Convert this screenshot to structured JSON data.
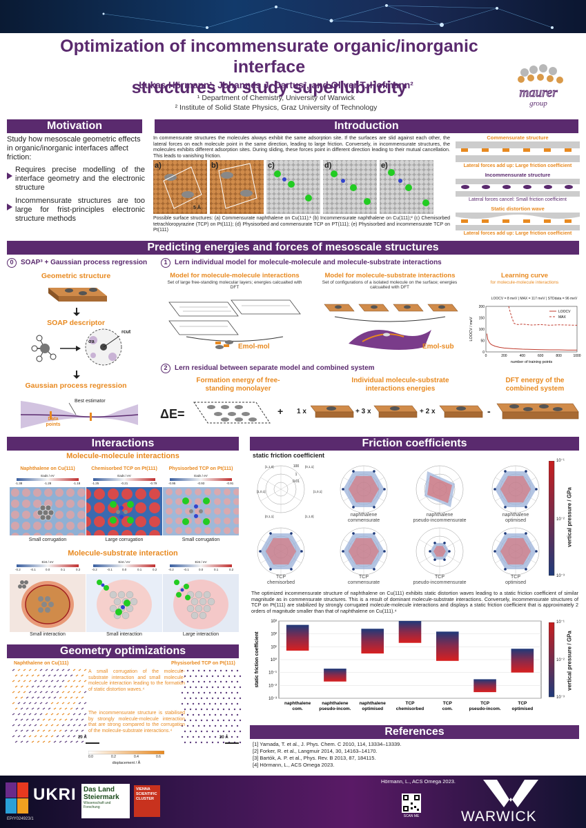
{
  "header": {
    "title_line1": "Optimization of incommensurate organic/inorganic interface",
    "title_line2": "structures to study superlubricity",
    "authors": "Lukas Hörmann¹, Johannes J. Cartus², and Oliver T. Hofmann²",
    "affiliation1": "¹ Department of Chemistry, University of Warwick",
    "affiliation2": "² Institute of Solid State Physics, Graz University of Technology",
    "logo_text": "maurer group"
  },
  "motivation": {
    "heading": "Motivation",
    "intro": "Study how mesoscale geometric effects in organic/inorganic interfaces affect friction:",
    "bullet1": "Requires precise modelling of the interface geometry and the electronic structure",
    "bullet2": "Incommensurate structures are too large for frist-principles electronic structure methods"
  },
  "introduction": {
    "heading": "Introduction",
    "text": "In commensurate structures the molecules always exhibit the same adsorption site. If the surfaces are slid against each other, the lateral forces on each molecule point in the same direction, leading to large friction. Conversely, in incommensurate structures, the molecules exhibits different adsorption sites. During sliding, these forces point in different direction leading to their mutual cancellation. This leads to vanishing friction.",
    "panel_labels": [
      "a)",
      "b)",
      "c)",
      "d)",
      "e)"
    ],
    "scale": "5 Å",
    "caption": "Possible surface structures: (a) Commensurate naphthalene on Cu(111);¹ (b) Incommensurate naphthalene on Cu(111);² (c) Chemisorbed tetrachloropyrazine (TCP) on Pt(111); (d) Physisorbed and commensurate TCP on PT(111); (e) Physisorbed and incommensurate TCP on Pt(111)",
    "side_title1": "Commensurate structure",
    "side_cap1": "Lateral forces add up: Large friction coefficient",
    "side_title2": "Incommensurate structure",
    "side_cap2": "Lateral forces cancel: Small friction coefficient",
    "side_title3": "Static distortion wave",
    "side_cap3": "Lateral forces add up: Large friction coefficient"
  },
  "predicting": {
    "heading": "Predicting energies and forces of mesoscale structures",
    "step0_num": "0",
    "step0": "SOAP³ + Gaussian process regression",
    "geo": "Geometric structure",
    "soap": "SOAP descriptor",
    "sigma": "σa",
    "rcut": "rcut",
    "gpr": "Gaussian process regression",
    "best": "Best estimator",
    "datapoints_l1": "Data",
    "datapoints_l2": "points",
    "step1_num": "1",
    "step1": "Lern individual model for molecule-molecule and molecule-substrate interactions",
    "mm_title": "Model for molecule-molecule interactions",
    "mm_sub": "Set of large free-standing molecular layers; energies calcualted with DFT",
    "mm_label": "Emol-mol",
    "ms_title": "Model for molecule-substrate interactions",
    "ms_sub": "Set of configurations of a isolated molecule on the surface; energies calcualted with DFT",
    "ms_label": "Emol-sub",
    "lc_title": "Learning curve",
    "lc_sub": "for molecule-molecule interactions",
    "lc_stats": "LOOCV = 8 meV | MAX = 117 meV | STDdata = 96 meV",
    "step2_num": "2",
    "step2": "Lern residual between separate model and combined system",
    "fe_title": "Formation energy of free-standing monolayer",
    "ind_title": "Individual molecule-substrate interactions energies",
    "dft_title": "DFT energy of the combined system",
    "delta": "ΔE=",
    "plus": "+",
    "c1": "1 x",
    "c3": "+ 3 x",
    "c2": "+ 2 x",
    "minus": "-"
  },
  "learning_curve": {
    "type": "line",
    "xlabel": "number of training points",
    "ylabel": "LOOCV / meV",
    "xlim": [
      0,
      1000
    ],
    "ylim": [
      0,
      200
    ],
    "xticks": [
      0,
      200,
      400,
      600,
      800,
      1000
    ],
    "yticks": [
      0,
      50,
      100,
      150,
      200
    ],
    "series": [
      {
        "name": "LOOCV",
        "x": [
          10,
          20,
          40,
          60,
          100,
          150,
          200,
          300,
          400,
          500,
          600,
          700,
          800,
          900,
          1000
        ],
        "y": [
          80,
          55,
          40,
          32,
          25,
          20,
          17,
          14,
          12,
          11,
          10,
          9,
          9,
          8,
          8
        ]
      },
      {
        "name": "MAX",
        "x": [
          250,
          270,
          290,
          310,
          350,
          400,
          500,
          600,
          700,
          800,
          900,
          1000
        ],
        "y": [
          200,
          170,
          145,
          125,
          120,
          122,
          118,
          120,
          117,
          119,
          118,
          117
        ]
      }
    ]
  },
  "interactions": {
    "heading": "Interactions",
    "mm_heading": "Molecule-molecule interactions",
    "p1_title": "Naphthalene on Cu(111)",
    "p2_title": "Chemisorbed TCP on Pt(111)",
    "p3_title": "Physisorbed TCP on Pt(111)",
    "cb_label": "Eads / eV",
    "p1_ticks": [
      "-1.38",
      "-1.28",
      "-1.18"
    ],
    "p2_ticks": [
      "-1.25",
      "-0.21",
      "-0.79"
    ],
    "p3_ticks": [
      "-0.95",
      "-0.93",
      "-0.91"
    ],
    "p1_cap": "Small corrugation",
    "p2_cap": "Large corrugation",
    "p3_cap": "Small corrugation",
    "ms_heading": "Molecule-substrate interaction",
    "ms_cb_label": "Eint / eV",
    "ms_ticks": [
      "-0.2",
      "-0.1",
      "0.0",
      "0.1",
      "0.2"
    ],
    "q1_cap": "Small interaction",
    "q2_cap": "Small interaction",
    "q3_cap": "Large interaction",
    "scale": "5 Å"
  },
  "geometry": {
    "heading": "Geometry optimizations",
    "left_title": "Naphthalene on Cu(111)",
    "right_title": "Physisorbed TCP on Pt(111)",
    "text1": "A small corrugation of the molecule-substrate interaction and small molecule-molecule interaction leading to the formation of static distortion waves.⁴",
    "text2": "The incommensurate structure is stabilised by strongly molecule-molecule interaction that are strong compared to the corrugation of the molecule-substrate interactions.⁴",
    "cb_label": "displacement / Å",
    "cb_ticks": [
      "0.0",
      "0.2",
      "0.4",
      "0.6"
    ],
    "scale": "20 Å"
  },
  "friction": {
    "heading": "Friction coefficients",
    "subtitle": "static friction coefficient",
    "polar_ticks": [
      "100",
      "1",
      "0.01"
    ],
    "polar_dirs": [
      "[1,1,0]",
      "[0,1,1]",
      "[1,0,1]",
      "[1,0,1]",
      "[0,1,1]",
      "[1,1,0]"
    ],
    "polar_captions": [
      [
        "naphthalene",
        "commensurate"
      ],
      [
        "naphthalene",
        "pseudo-incommensurate"
      ],
      [
        "naphthalene",
        "optimised"
      ],
      [
        "TCP",
        "chemisorbed"
      ],
      [
        "TCP",
        "commensurate"
      ],
      [
        "TCP",
        "pseudo-incommensurate"
      ],
      [
        "TCP",
        "optimised"
      ]
    ],
    "cb_label": "vertical pressure / GPa",
    "cb_ticks": [
      "10⁻¹",
      "10⁻²",
      "10⁻³"
    ],
    "text": "The optimized incommensurate structure of naphthalene on Cu(111) exhibits static distortion waves leading to a static friction coefficient of similar magnitude as in commensurate structures. This is a result of dominant molecule-substrate interactions. Conversely, incommensurate structures of TCP on Pt(111) are stabilized by strongly corrugated molecule-molecule interactions and displays a static friction coefficient that is approximately 2 orders of magnitude smaller than that of naphthalene on Cu(111).⁴"
  },
  "chart_data": {
    "type": "bar",
    "ylabel": "static friction coefficient",
    "yscale": "log",
    "ylim": [
      0.001,
      1000
    ],
    "yticks": [
      "10⁻³",
      "10⁻²",
      "10⁻¹",
      "10⁰",
      "10¹",
      "10²",
      "10³"
    ],
    "categories": [
      [
        "naphthalene",
        "com."
      ],
      [
        "naphthalene",
        "pseudo-incom."
      ],
      [
        "naphthalene",
        "optimised"
      ],
      [
        "TCP",
        "chemisorbed"
      ],
      [
        "TCP",
        "com."
      ],
      [
        "TCP",
        "pseudo-incom."
      ],
      [
        "TCP",
        "optimised"
      ]
    ],
    "ranges": [
      [
        5,
        500
      ],
      [
        0.02,
        0.2
      ],
      [
        3,
        250
      ],
      [
        20,
        1000
      ],
      [
        0.8,
        150
      ],
      [
        0.003,
        0.03
      ],
      [
        0.1,
        7
      ]
    ]
  },
  "references": {
    "heading": "References",
    "items": [
      "[1]  Yamada, T. et al., J. Phys. Chem. C 2010, 114, 13334–13339.",
      "[2]  Forker, R. et al., Langmuir 2014, 30, 14163–14170.",
      "[3]  Bartók, A. P. et al., Phys. Rev. B 2013, 87, 184115.",
      "[4]  Hörmann, L., ACS Omega 2023."
    ]
  },
  "footer": {
    "grant": "EP/Y024923/1",
    "steiermark_l1": "Das Land",
    "steiermark_l2": "Steiermark",
    "steiermark_l3": "Wissenschaft und Forschung",
    "vsc": "VIENNA SCIENTIFIC CLUSTER",
    "ukri": "UKRI",
    "citation": "Hörmann, L., ACS Omega 2023.",
    "scan": "SCAN ME",
    "warwick": "WARWICK"
  },
  "colors": {
    "purple": "#5a2a6e",
    "orange": "#e8891f",
    "copper": "#c97b3c"
  }
}
